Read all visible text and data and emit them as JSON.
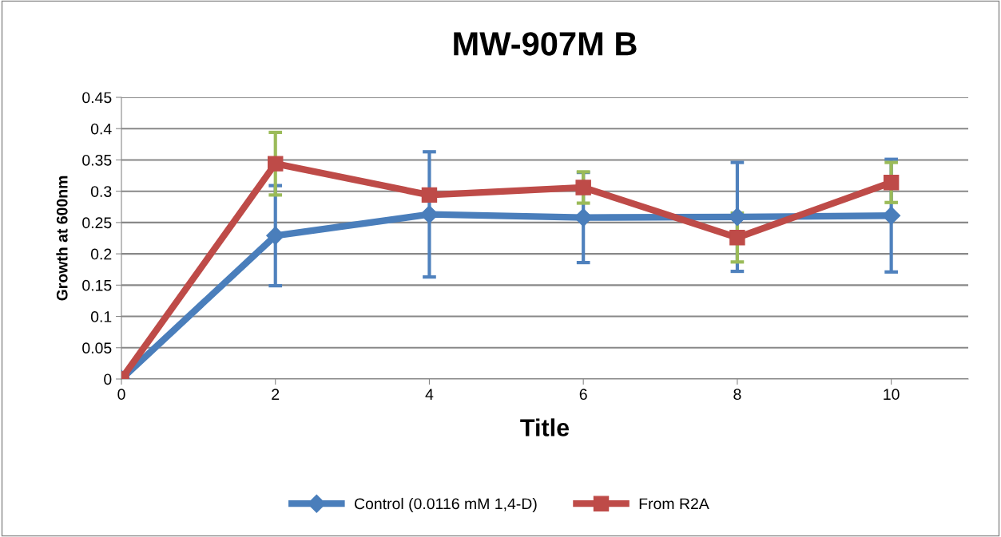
{
  "chart_data": {
    "type": "line",
    "title": "MW-907M B",
    "xlabel": "Title",
    "ylabel": "Growth at 600nm",
    "x": [
      0,
      2,
      4,
      6,
      8,
      10
    ],
    "series": [
      {
        "name": "Control (0.0116 mM 1,4-D)",
        "color": "#4a7ebb",
        "marker": "diamond",
        "values": [
          0,
          0.229,
          0.263,
          0.258,
          0.259,
          0.261
        ],
        "errors": [
          null,
          0.08,
          0.1,
          0.072,
          0.087,
          0.09
        ]
      },
      {
        "name": "From R2A",
        "color": "#be4b48",
        "marker": "square",
        "values": [
          0,
          0.344,
          0.294,
          0.306,
          0.226,
          0.314
        ],
        "errors": [
          null,
          0.05,
          null,
          0.025,
          0.039,
          0.032
        ]
      }
    ],
    "xlim": [
      0,
      11
    ],
    "xticks": [
      0,
      2,
      4,
      6,
      8,
      10
    ],
    "ylim": [
      0,
      0.45
    ],
    "yticks": [
      0,
      0.05,
      0.1,
      0.15,
      0.2,
      0.25,
      0.3,
      0.35,
      0.4,
      0.45
    ],
    "grid": "y",
    "legend": "bottom",
    "line_style": "solid"
  }
}
